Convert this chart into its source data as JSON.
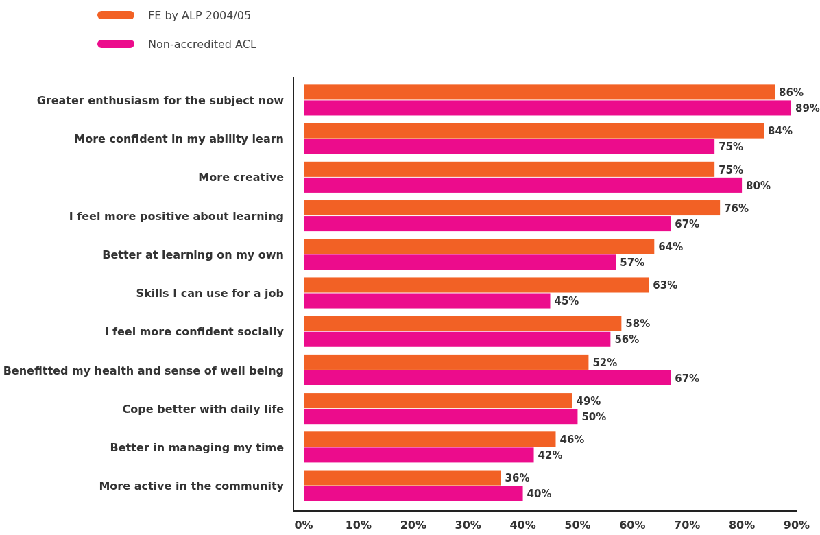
{
  "chart_data": {
    "type": "bar",
    "orientation": "horizontal",
    "legend": "top left",
    "grid": false,
    "categories": [
      "Greater enthusiasm for the subject now",
      "More confident in my ability learn",
      "More creative",
      "I feel more positive about learning",
      "Better at learning on my own",
      "Skills I can use for a job",
      "I feel more confident socially",
      "Benefitted my health and sense of well being",
      "Cope better with daily life",
      "Better in managing my time",
      "More active in the community"
    ],
    "series": [
      {
        "name": "FE by ALP 2004/05",
        "color": "#f26125",
        "values": [
          86,
          84,
          75,
          76,
          64,
          63,
          58,
          52,
          49,
          46,
          36
        ],
        "value_labels": [
          "86%",
          "84%",
          "75%",
          "76%",
          "64%",
          "63%",
          "58%",
          "52%",
          "49%",
          "46%",
          "36%"
        ]
      },
      {
        "name": "Non-accredited ACL",
        "color": "#ec0c8c",
        "values": [
          89,
          75,
          80,
          67,
          57,
          45,
          56,
          67,
          50,
          42,
          40
        ],
        "value_labels": [
          "89%",
          "75%",
          "80%",
          "67%",
          "57%",
          "45%",
          "56%",
          "67%",
          "50%",
          "42%",
          "40%"
        ]
      }
    ],
    "xlim": [
      0,
      90
    ],
    "xticks": [
      {
        "value": 0,
        "label": "0%"
      },
      {
        "value": 10,
        "label": "10%"
      },
      {
        "value": 20,
        "label": "20%"
      },
      {
        "value": 30,
        "label": "30%"
      },
      {
        "value": 40,
        "label": "40%"
      },
      {
        "value": 50,
        "label": "50%"
      },
      {
        "value": 60,
        "label": "60%"
      },
      {
        "value": 70,
        "label": "70%"
      },
      {
        "value": 80,
        "label": "80%"
      },
      {
        "value": 90,
        "label": "90%"
      }
    ]
  }
}
